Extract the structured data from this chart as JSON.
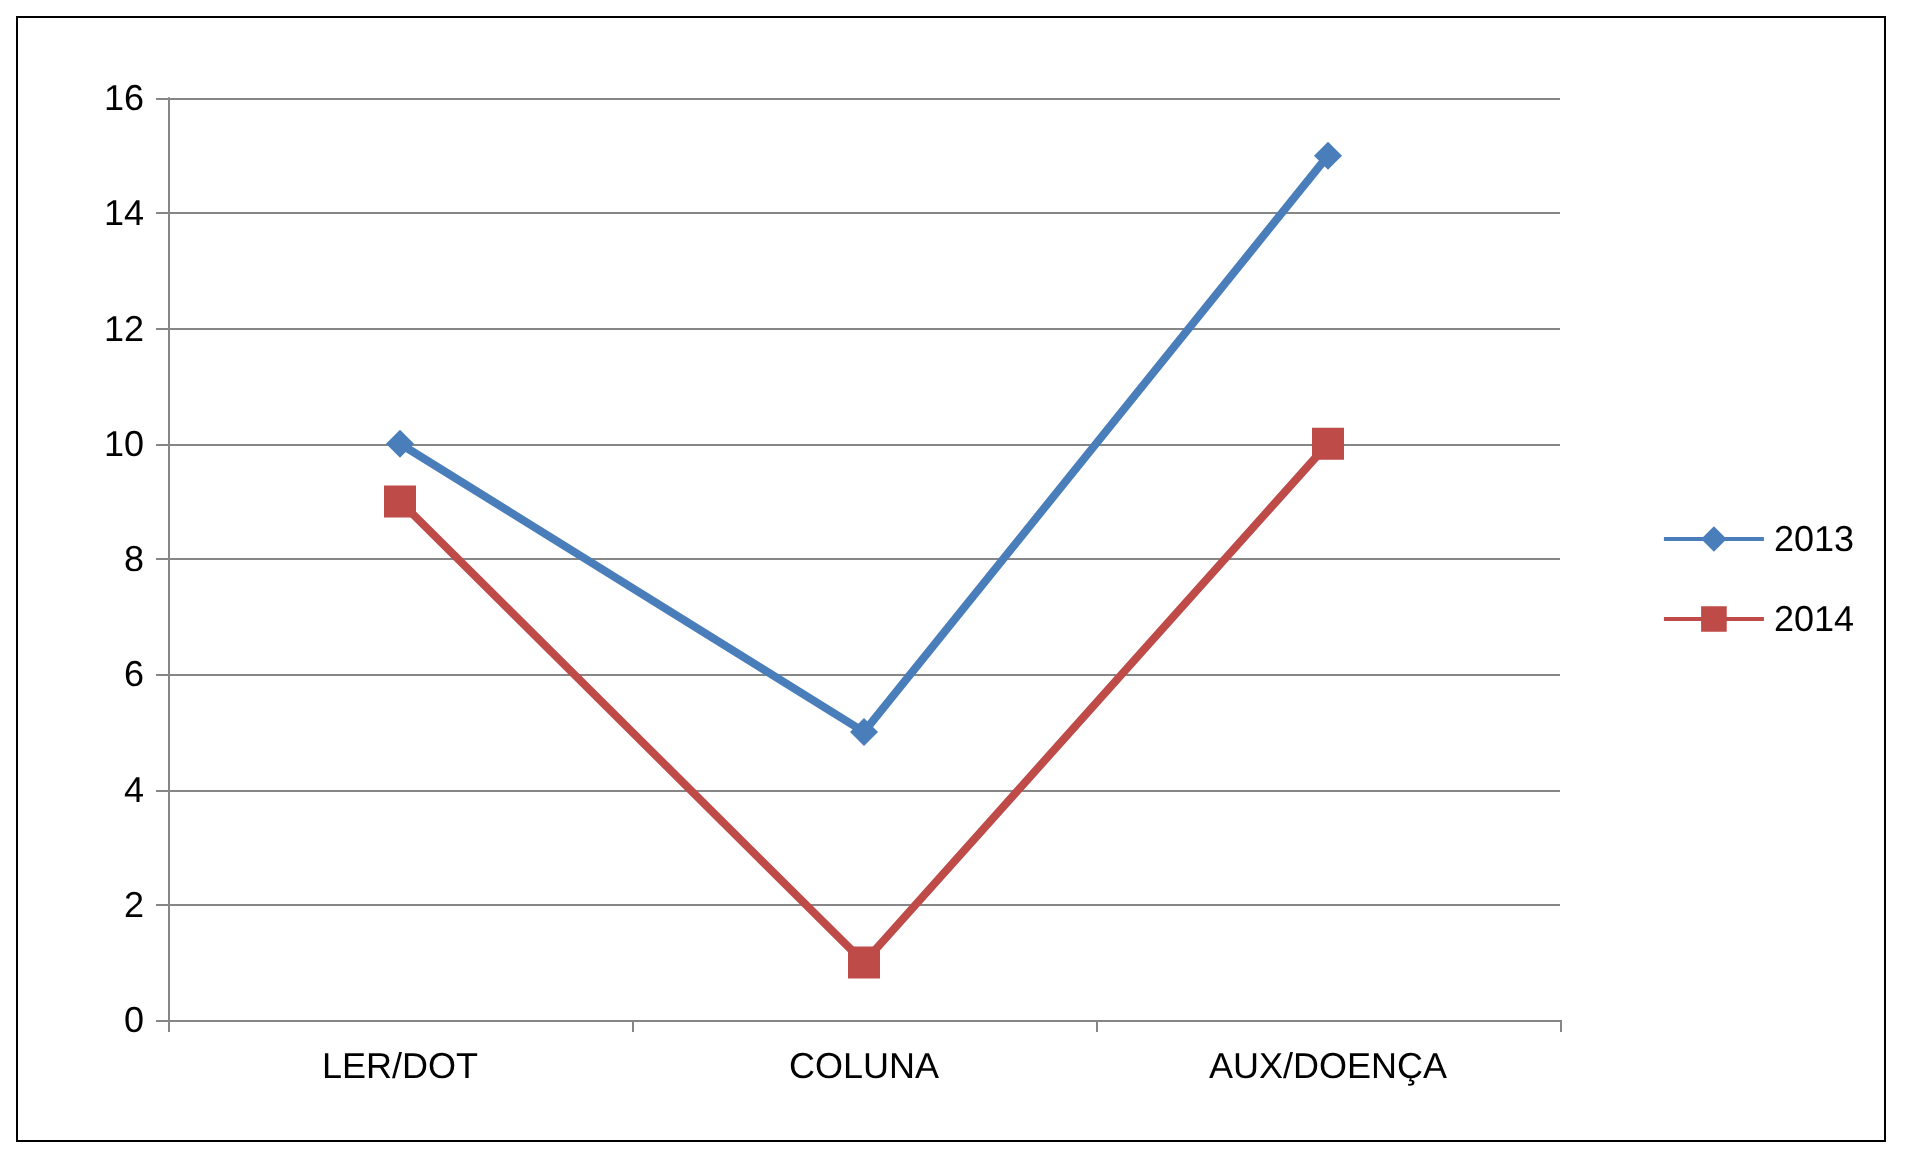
{
  "chart_data": {
    "type": "line",
    "categories": [
      "LER/DOT",
      "COLUNA",
      "AUX/DOENÇA"
    ],
    "series": [
      {
        "name": "2013",
        "color": "#4a7ebb",
        "values": [
          10,
          5,
          15
        ],
        "marker": "diamond"
      },
      {
        "name": "2014",
        "color": "#be4b48",
        "values": [
          9,
          1,
          10
        ],
        "marker": "square"
      }
    ],
    "ylim": [
      0,
      16
    ],
    "yticks": [
      0,
      2,
      4,
      6,
      8,
      10,
      12,
      14,
      16
    ],
    "grid": "y",
    "legend": "right",
    "line_style": "solid"
  }
}
